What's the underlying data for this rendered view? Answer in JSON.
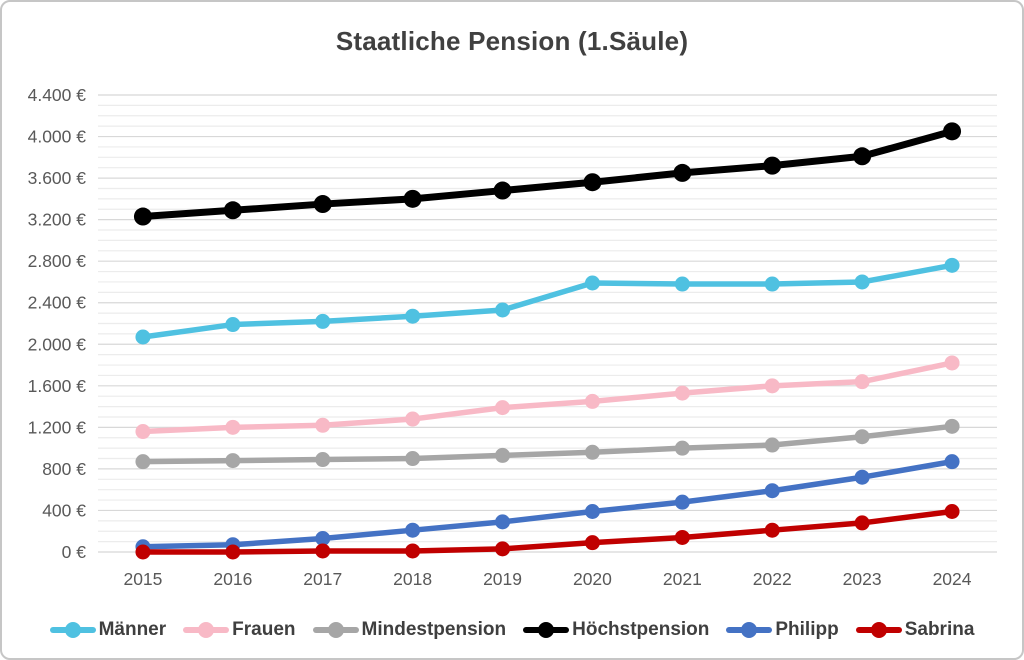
{
  "window": {
    "background": "#ffffff",
    "border_color": "#c6c6c6"
  },
  "styles": {
    "title_color": "#404040",
    "axis_label_color": "#595959",
    "legend_label_color": "#3f3f3f",
    "gridline_minor": "#ececec",
    "gridline_major": "#d8d8d8"
  },
  "chart_data": {
    "type": "line",
    "title": "Staatliche Pension (1.Säule)",
    "categories": [
      "2015",
      "2016",
      "2017",
      "2018",
      "2019",
      "2020",
      "2021",
      "2022",
      "2023",
      "2024"
    ],
    "series": [
      {
        "name": "Männer",
        "color": "#4FC1E1",
        "values": [
          2070,
          2190,
          2220,
          2270,
          2330,
          2590,
          2580,
          2580,
          2600,
          2760
        ]
      },
      {
        "name": "Frauen",
        "color": "#F8B9C6",
        "values": [
          1160,
          1200,
          1220,
          1280,
          1390,
          1450,
          1530,
          1600,
          1640,
          1820
        ]
      },
      {
        "name": "Mindestpension",
        "color": "#A6A6A6",
        "values": [
          870,
          880,
          890,
          900,
          930,
          960,
          1000,
          1030,
          1110,
          1210
        ]
      },
      {
        "name": "Höchstpension",
        "color": "#000000",
        "values": [
          3230,
          3290,
          3350,
          3400,
          3480,
          3560,
          3650,
          3720,
          3810,
          4050
        ]
      },
      {
        "name": "Philipp",
        "color": "#4472C4",
        "values": [
          50,
          70,
          130,
          210,
          290,
          390,
          480,
          590,
          720,
          870
        ]
      },
      {
        "name": "Sabrina",
        "color": "#C00000",
        "values": [
          0,
          0,
          10,
          10,
          30,
          90,
          140,
          210,
          280,
          390
        ]
      }
    ],
    "ylim": [
      0,
      4400
    ],
    "y_major_step": 400,
    "y_minor_step": 100,
    "y_tick_labels": [
      "0 €",
      "400 €",
      "800 €",
      "1.200 €",
      "1.600 €",
      "2.000 €",
      "2.400 €",
      "2.800 €",
      "3.200 €",
      "3.600 €",
      "4.000 €",
      "4.400 €"
    ],
    "xlabel": "",
    "ylabel": "",
    "grid": true,
    "legend_position": "bottom"
  }
}
